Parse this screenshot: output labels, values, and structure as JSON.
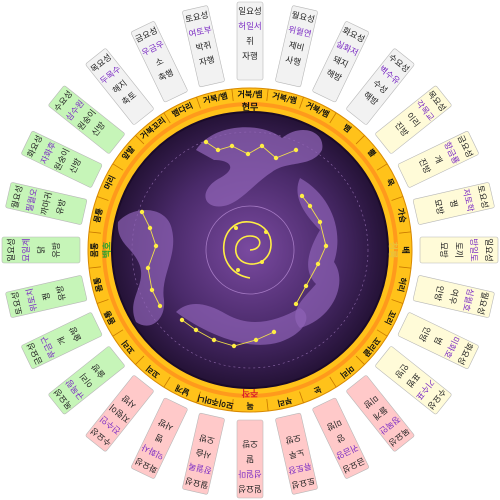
{
  "colors": {
    "north_card": "#f2f2f2",
    "east_card": "#fffbd8",
    "south_card": "#ffc9c9",
    "west_card": "#c6f5b8",
    "ring_yellow": "#ffc21a",
    "ring_orange": "#ff9a1c",
    "sky_dark": "#2a153f",
    "sky_purple": "#6b3f8f",
    "star": "#ffee44",
    "creature": "#8f63b6",
    "house_text": "#7b2cc4",
    "east_label": "#e8c23b",
    "south_label": "#d9202a",
    "west_label": "#2fa22f"
  },
  "diagram": {
    "groups": [
      {
        "name": "north",
        "card_color_key": "north_card",
        "label_color_key": "",
        "sectors": [
          {
            "ring_label": "거북꼬리",
            "lines": [
              "목요성",
              "두목수",
              "해지",
              "축토"
            ]
          },
          {
            "ring_label": "뱀다리",
            "lines": [
              "금요성",
              "우금우",
              "소",
              "축행"
            ]
          },
          {
            "ring_label": "거북/뱀",
            "lines": [
              "토요성",
              "여토부",
              "박쥐",
              "자행"
            ]
          },
          {
            "ring_label": "거북/뱀",
            "lines": [
              "일요성",
              "허일서",
              "쥐",
              "자행"
            ]
          },
          {
            "ring_label": "거북/뱀",
            "lines": [
              "월요성",
              "위월연",
              "제비",
              "사행"
            ]
          },
          {
            "ring_label": "거북/뱀",
            "lines": [
              "화요성",
              "실화저",
              "돼지",
              "해방"
            ]
          },
          {
            "ring_label": "뱀",
            "lines": [
              "수요성",
              "벽수유",
              "수성",
              "해방"
            ]
          }
        ]
      },
      {
        "name": "east",
        "card_color_key": "east_card",
        "label_color_key": "east_label",
        "sectors": [
          {
            "ring_label": "뿔",
            "lines": [
              "목요성",
              "각목교",
              "이리",
              "진방"
            ]
          },
          {
            "ring_label": "목",
            "lines": [
              "금요성",
              "항금룡",
              "개",
              "진방"
            ]
          },
          {
            "ring_label": "가슴",
            "lines": [
              "토요성",
              "저토학",
              "꿩",
              "묘방"
            ]
          },
          {
            "ring_label": "배",
            "lines": [
              "일요성",
              "방일토",
              "토끼",
              "묘방"
            ]
          },
          {
            "ring_label": "허리",
            "lines": [
              "월요성",
              "심월호",
              "여우",
              "인방"
            ]
          },
          {
            "ring_label": "꼬리",
            "lines": [
              "화요성",
              "미화호",
              "범",
              "인방"
            ]
          },
          {
            "ring_label": "꼬리끝",
            "lines": [
              "수요성",
              "기수표",
              "표범",
              "인방"
            ]
          }
        ]
      },
      {
        "name": "south",
        "card_color_key": "south_card",
        "label_color_key": "south_label",
        "sectors": [
          {
            "ring_label": "머리",
            "lines": [
              "목요성",
              "정목안",
              "들개",
              "미방"
            ]
          },
          {
            "ring_label": "눈",
            "lines": [
              "금요성",
              "귀금양",
              "양",
              "미방"
            ]
          },
          {
            "ring_label": "부리",
            "lines": [
              "토요성",
              "류토장",
              "노루",
              "오방"
            ]
          },
          {
            "ring_label": "목",
            "lines": [
              "일요성",
              "성일마",
              "말",
              "오방"
            ]
          },
          {
            "ring_label": "모이주머니",
            "lines": [
              "월요성",
              "장월록",
              "사슴",
              "오방"
            ]
          },
          {
            "ring_label": "날개",
            "lines": [
              "화요성",
              "익화사",
              "뱀",
              "사방"
            ]
          },
          {
            "ring_label": "꼬리",
            "lines": [
              "수요성",
              "진수인",
              "지렁이",
              "사방"
            ]
          }
        ]
      },
      {
        "name": "west",
        "card_color_key": "west_card",
        "label_color_key": "west_label",
        "sectors": [
          {
            "ring_label": "꼬리",
            "lines": [
              "목요성",
              "규목랑",
              "이리",
              "술방"
            ]
          },
          {
            "ring_label": "몸통",
            "lines": [
              "금요성",
              "루금구",
              "개",
              "술방"
            ]
          },
          {
            "ring_label": "몸통",
            "lines": [
              "토요성",
              "위토치",
              "꿩",
              "유방"
            ]
          },
          {
            "ring_label": "몸통",
            "lines": [
              "일요성",
              "묘일계",
              "닭",
              "유방"
            ]
          },
          {
            "ring_label": "몸통",
            "lines": [
              "월요성",
              "필월오",
              "까마귀",
              "유방"
            ]
          },
          {
            "ring_label": "머리",
            "lines": [
              "화요성",
              "자화후",
              "원숭이",
              "신방"
            ]
          },
          {
            "ring_label": "앞발",
            "lines": [
              "수요성",
              "삼수원",
              "원숭이",
              "신방"
            ]
          }
        ]
      }
    ],
    "inner_labels": {
      "east": "청룡",
      "south": "주작",
      "west": "백호",
      "north": "현무"
    }
  }
}
